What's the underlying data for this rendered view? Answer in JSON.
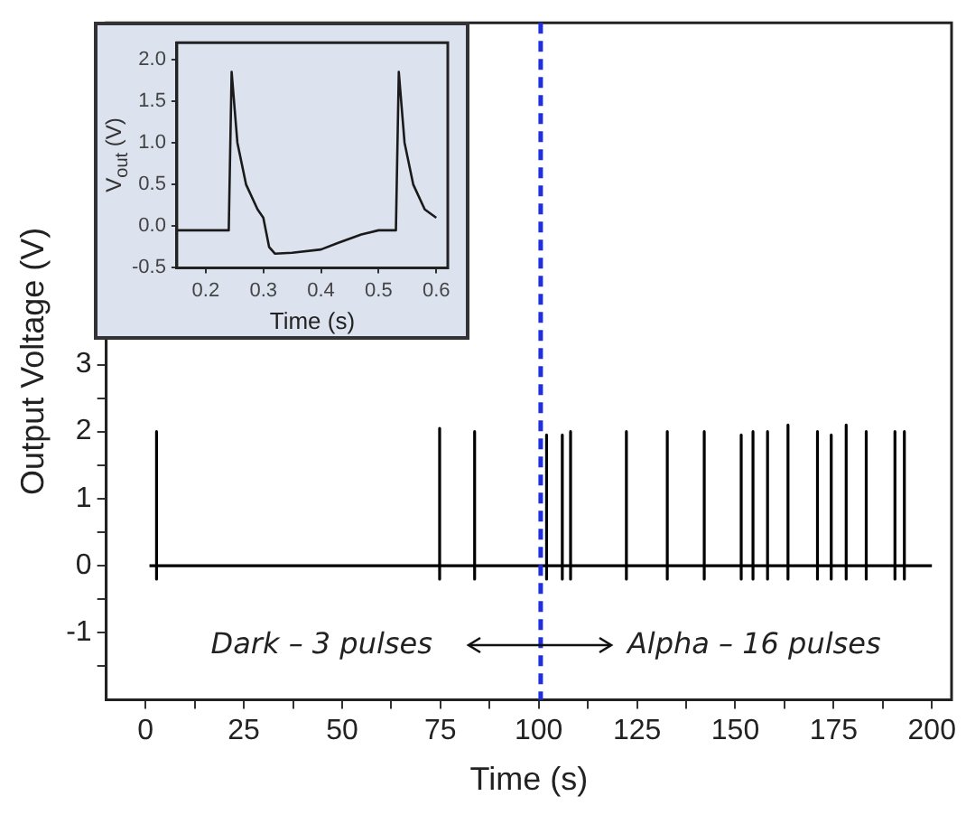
{
  "chart_data": [
    {
      "type": "line",
      "xlabel": "Time (s)",
      "ylabel": "Output Voltage (V)",
      "xlim": [
        -10,
        205
      ],
      "xticks": [
        0,
        {
          "value": 12.5,
          "label": null
        },
        25,
        {
          "value": 37.5,
          "label": null
        },
        50,
        {
          "value": 62.5,
          "label": null
        },
        75,
        {
          "value": 87.5,
          "label": null
        },
        100,
        {
          "value": 112.5,
          "label": null
        },
        125,
        {
          "value": 137.5,
          "label": null
        },
        150,
        {
          "value": 162.5,
          "label": null
        },
        175,
        {
          "value": 187.5,
          "label": null
        },
        200
      ],
      "ylim": [
        -2,
        8.1
      ],
      "yticks": [
        {
          "value": -1.5,
          "label": null
        },
        -1,
        {
          "value": -0.5,
          "label": null
        },
        0,
        {
          "value": 0.5,
          "label": null
        },
        1,
        {
          "value": 1.5,
          "label": null
        },
        2,
        {
          "value": 2.5,
          "label": null
        },
        3,
        {
          "value": 3.5,
          "label": null
        },
        {
          "value": 4,
          "label": null
        },
        {
          "value": 4.5,
          "label": null
        },
        {
          "value": 5,
          "label": null
        },
        {
          "value": 5.5,
          "label": null
        },
        {
          "value": 6,
          "label": null
        },
        {
          "value": 6.5,
          "label": null
        },
        {
          "value": 7,
          "label": null
        },
        {
          "value": 7.5,
          "label": null
        },
        {
          "value": 8,
          "label": null
        }
      ],
      "grid": false,
      "legend": false,
      "marker": "none",
      "line_style": "solid",
      "series": [
        {
          "color": "#000000",
          "x": [
            1,
            2.8,
            2.8,
            2.8,
            2.8,
            74.8,
            74.8,
            74.8,
            74.8,
            83.7,
            83.7,
            83.7,
            83.7,
            102,
            102,
            102,
            102,
            106,
            106,
            106,
            106,
            108.1,
            108.1,
            108.1,
            108.1,
            122.3,
            122.3,
            122.3,
            122.3,
            132.7,
            132.7,
            132.7,
            132.7,
            142.1,
            142.1,
            142.1,
            142.1,
            151.5,
            151.5,
            151.5,
            151.5,
            154.5,
            154.5,
            154.5,
            154.5,
            158.2,
            158.2,
            158.2,
            158.2,
            163.4,
            163.4,
            163.4,
            163.4,
            170.9,
            170.9,
            170.9,
            170.9,
            174.4,
            174.4,
            174.4,
            174.4,
            178.2,
            178.2,
            178.2,
            178.2,
            183.3,
            183.3,
            183.3,
            183.3,
            190.6,
            190.6,
            190.6,
            190.6,
            193,
            193,
            193,
            193,
            200
          ],
          "values": [
            0,
            0,
            2,
            -0.2,
            0,
            0,
            2.05,
            -0.2,
            0,
            0,
            2,
            -0.2,
            0,
            0,
            1.95,
            -0.2,
            0,
            0,
            1.95,
            -0.2,
            0,
            0,
            2,
            -0.2,
            0,
            0,
            2,
            -0.2,
            0,
            0,
            2,
            -0.2,
            0,
            0,
            2,
            -0.2,
            0,
            0,
            1.95,
            -0.2,
            0,
            0,
            2,
            -0.2,
            0,
            0,
            2,
            -0.2,
            0,
            0,
            2.1,
            -0.2,
            0,
            0,
            2,
            -0.2,
            0,
            0,
            1.95,
            -0.2,
            0,
            0,
            2.1,
            -0.2,
            0,
            0,
            2,
            -0.2,
            0,
            0,
            2,
            -0.2,
            0,
            0,
            2,
            -0.2,
            0,
            0
          ]
        }
      ],
      "ref_lines": [
        {
          "axis": "x",
          "value": 100.5,
          "color": "#1f2fe0",
          "line_style": "dashed"
        }
      ],
      "annotations": [
        "Dark – 3 pulses",
        "Alpha – 16 pulses"
      ]
    },
    {
      "type": "line",
      "xlabel": "Time (s)",
      "ylabel": "V$_{out}$ (V)",
      "xlim": [
        0.15,
        0.62
      ],
      "xticks": [
        0.2,
        0.3,
        0.4,
        0.5,
        0.6
      ],
      "ylim": [
        -0.5,
        2.2
      ],
      "yticks": [
        {
          "value": -0.5,
          "label": "-0.5"
        },
        {
          "value": 0,
          "label": "0.0"
        },
        {
          "value": 0.5,
          "label": "0.5"
        },
        {
          "value": 1,
          "label": "1.0"
        },
        {
          "value": 1.5,
          "label": "1.5"
        },
        {
          "value": 2,
          "label": "2.0"
        }
      ],
      "grid": false,
      "legend": false,
      "marker": "none",
      "line_style": "solid",
      "series": [
        {
          "color": "#1a1a1a",
          "x": [
            0.15,
            0.2,
            0.24,
            0.245,
            0.255,
            0.27,
            0.29,
            0.3,
            0.31,
            0.32,
            0.35,
            0.4,
            0.43,
            0.47,
            0.5,
            0.53,
            0.535,
            0.545,
            0.56,
            0.58,
            0.6
          ],
          "values": [
            -0.05,
            -0.05,
            -0.05,
            1.85,
            1.0,
            0.5,
            0.2,
            0.1,
            -0.25,
            -0.33,
            -0.32,
            -0.28,
            -0.2,
            -0.1,
            -0.05,
            -0.05,
            1.85,
            1.0,
            0.5,
            0.2,
            0.1
          ]
        }
      ]
    }
  ]
}
